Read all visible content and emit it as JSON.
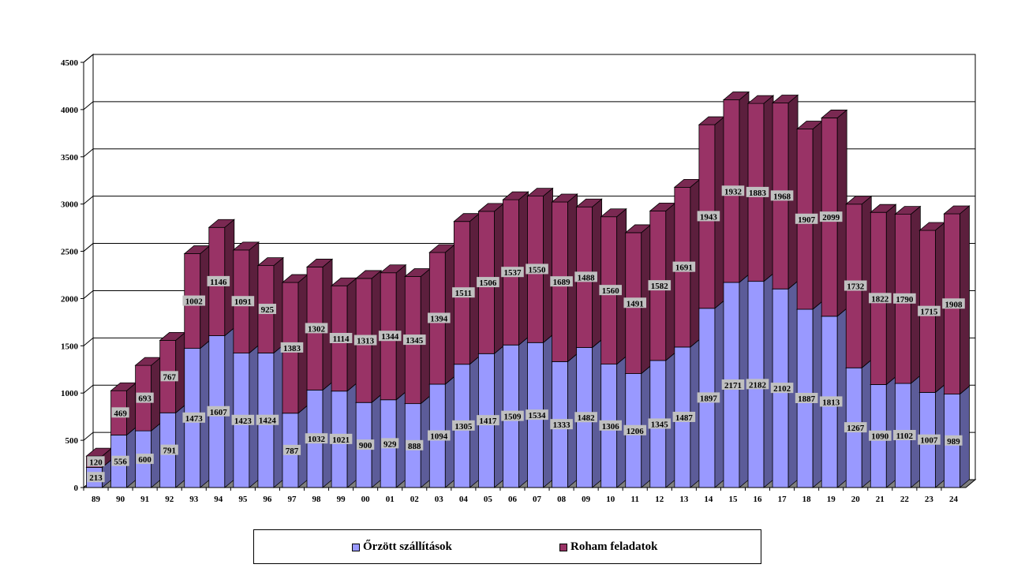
{
  "chart_data": {
    "type": "bar",
    "stacked": true,
    "three_d": true,
    "title": "",
    "xlabel": "",
    "ylabel": "",
    "ylim": [
      0,
      4500
    ],
    "yticks": [
      0,
      500,
      1000,
      1500,
      2000,
      2500,
      3000,
      3500,
      4000,
      4500
    ],
    "grid": true,
    "legend_position": "bottom",
    "categories": [
      "89",
      "90",
      "91",
      "92",
      "93",
      "94",
      "95",
      "96",
      "97",
      "98",
      "99",
      "00",
      "01",
      "02",
      "03",
      "04",
      "05",
      "06",
      "07",
      "08",
      "09",
      "10",
      "11",
      "12",
      "13",
      "14",
      "15",
      "16",
      "17",
      "18",
      "19",
      "20",
      "21",
      "22",
      "23",
      "24"
    ],
    "series": [
      {
        "name": "Őrzött szállítások",
        "color": "#9999ff",
        "values": [
          213,
          556,
          600,
          791,
          1473,
          1607,
          1423,
          1424,
          787,
          1032,
          1021,
          900,
          929,
          888,
          1094,
          1305,
          1417,
          1509,
          1534,
          1333,
          1482,
          1306,
          1206,
          1345,
          1487,
          1897,
          2171,
          2182,
          2102,
          1887,
          1813,
          1267,
          1090,
          1102,
          1007,
          989
        ]
      },
      {
        "name": "Roham feladatok",
        "color": "#993366",
        "values": [
          120,
          469,
          693,
          767,
          1002,
          1146,
          1091,
          925,
          1383,
          1302,
          1114,
          1313,
          1344,
          1345,
          1394,
          1511,
          1506,
          1537,
          1550,
          1689,
          1488,
          1560,
          1491,
          1582,
          1691,
          1943,
          1932,
          1883,
          1968,
          1907,
          2099,
          1732,
          1822,
          1790,
          1715,
          1908
        ]
      }
    ]
  }
}
